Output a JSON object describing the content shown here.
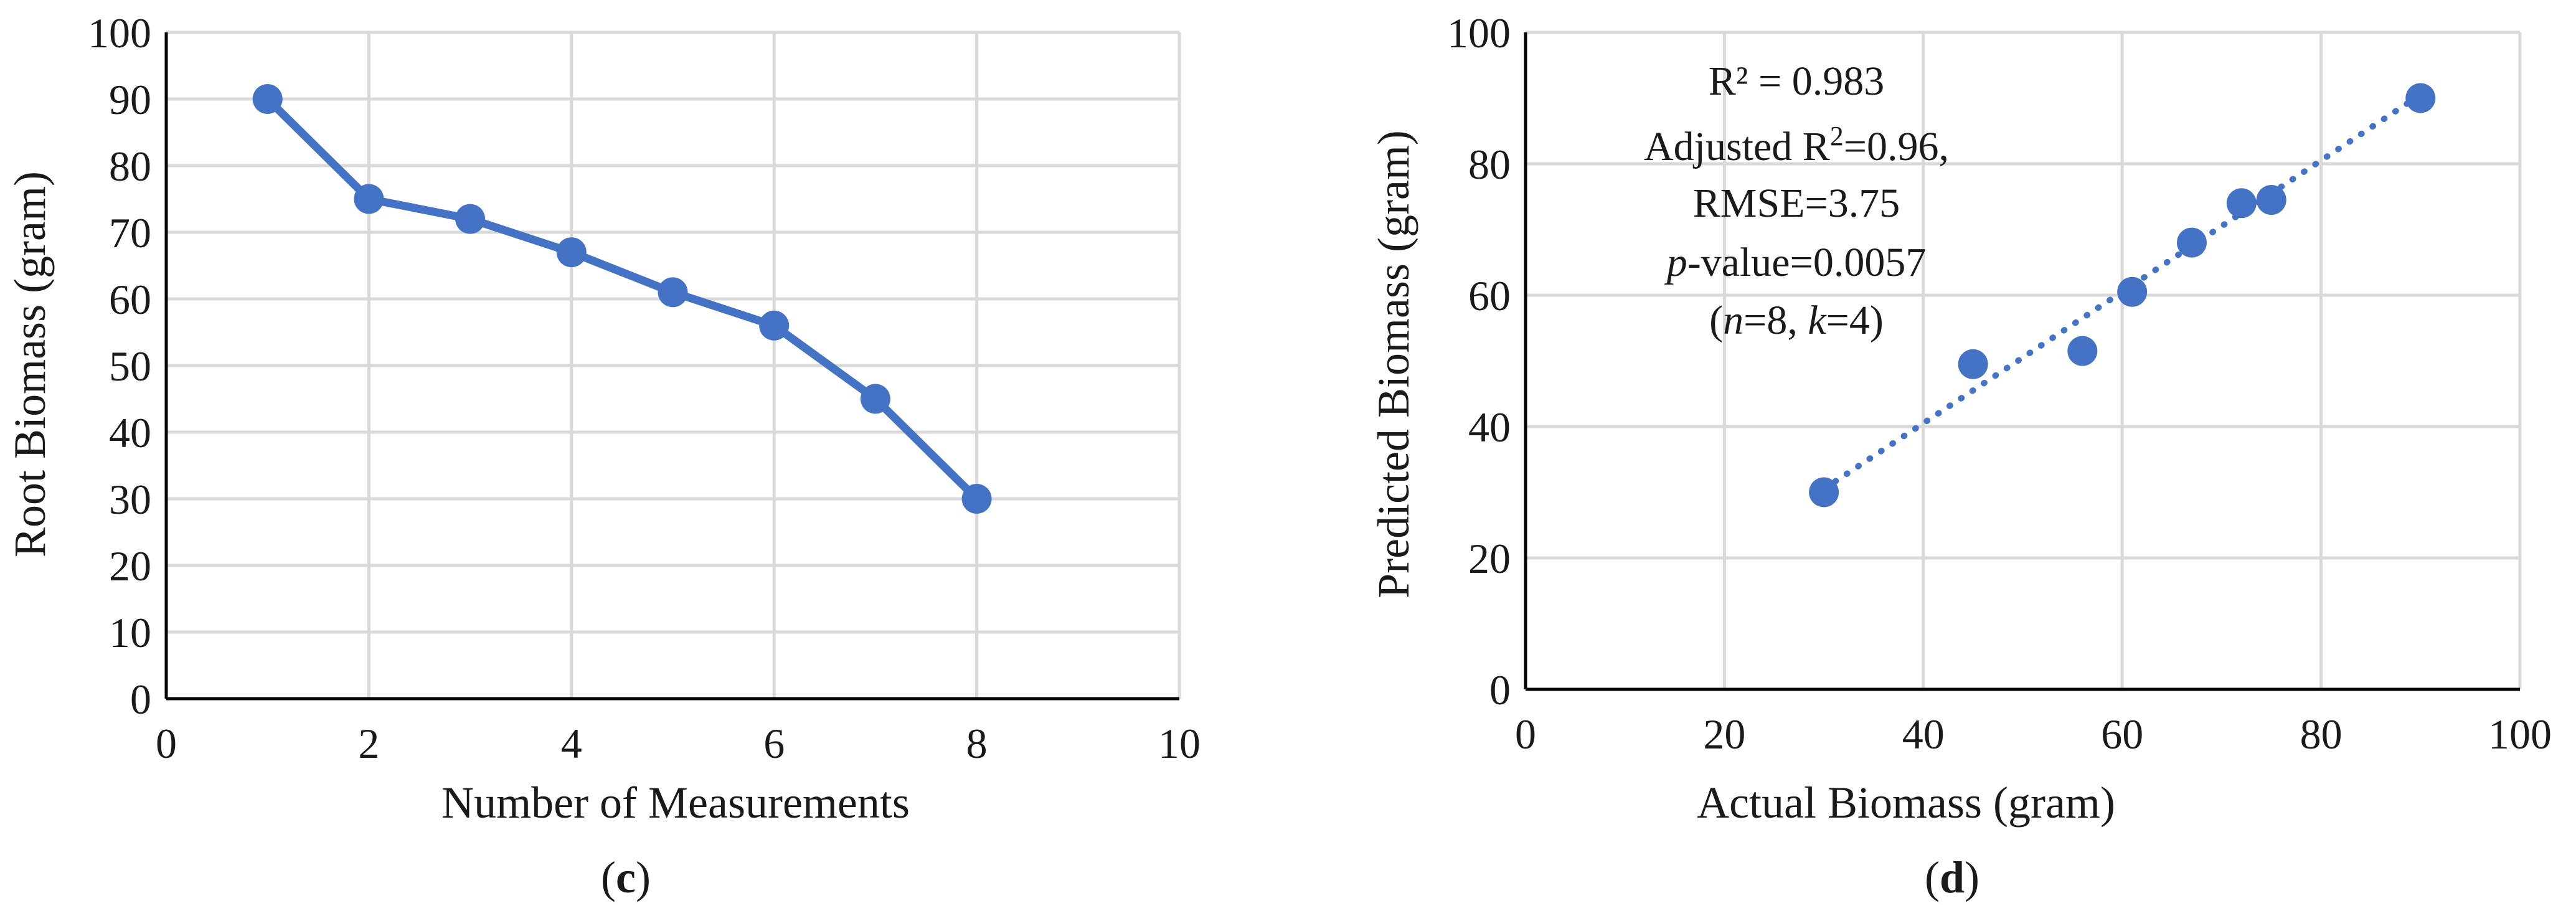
{
  "colors": {
    "series": "#4472C4",
    "grid": "#D9D9D9",
    "axis": "#000000",
    "text": "#1A1A1A"
  },
  "panels": {
    "c": {
      "label_open": "(",
      "label_letter": "c",
      "label_close": ")"
    },
    "d": {
      "label_open": "(",
      "label_letter": "d",
      "label_close": ")"
    }
  },
  "chart_data": [
    {
      "type": "line",
      "panel": "c",
      "title": "",
      "xlabel": "Number of Measurements",
      "ylabel": "Root Biomass (gram)",
      "xlim": [
        0,
        10
      ],
      "ylim": [
        0,
        100
      ],
      "xticks": [
        0,
        2,
        4,
        6,
        8,
        10
      ],
      "yticks": [
        0,
        10,
        20,
        30,
        40,
        50,
        60,
        70,
        80,
        90,
        100
      ],
      "grid": "on",
      "legend": "none",
      "series": [
        {
          "x": [
            1,
            2,
            3,
            4,
            5,
            6,
            7,
            8
          ],
          "y": [
            90,
            75,
            72,
            67,
            61,
            56,
            45,
            30
          ]
        }
      ]
    },
    {
      "type": "scatter",
      "panel": "d",
      "title": "",
      "xlabel": "Actual Biomass (gram)",
      "ylabel": "Predicted Biomass (gram)",
      "xlim": [
        0,
        100
      ],
      "ylim": [
        0,
        100
      ],
      "xticks": [
        0,
        20,
        40,
        60,
        80,
        100
      ],
      "yticks": [
        0,
        20,
        40,
        60,
        80,
        100
      ],
      "grid": "on",
      "legend": "none",
      "series": [
        {
          "x": [
            30,
            45,
            56,
            61,
            67,
            72,
            75,
            90
          ],
          "y": [
            30,
            49.5,
            51.5,
            60.5,
            68,
            74,
            74.5,
            90
          ]
        }
      ],
      "trendline": {
        "style": "dotted linear",
        "x": [
          30,
          90
        ],
        "y": [
          30.5,
          90.5
        ]
      },
      "annotation": {
        "r2": "R² = 0.983",
        "adj_prefix": "Adjusted R",
        "adj_sup": "2",
        "adj_suffix": "=0.96,",
        "rmse": "RMSE=3.75",
        "p_italic": "p",
        "p_rest": "-value=0.0057",
        "n_open": "(",
        "n_italic": "n",
        "n_mid": "=8, ",
        "k_italic": "k",
        "k_rest": "=4)"
      }
    }
  ]
}
